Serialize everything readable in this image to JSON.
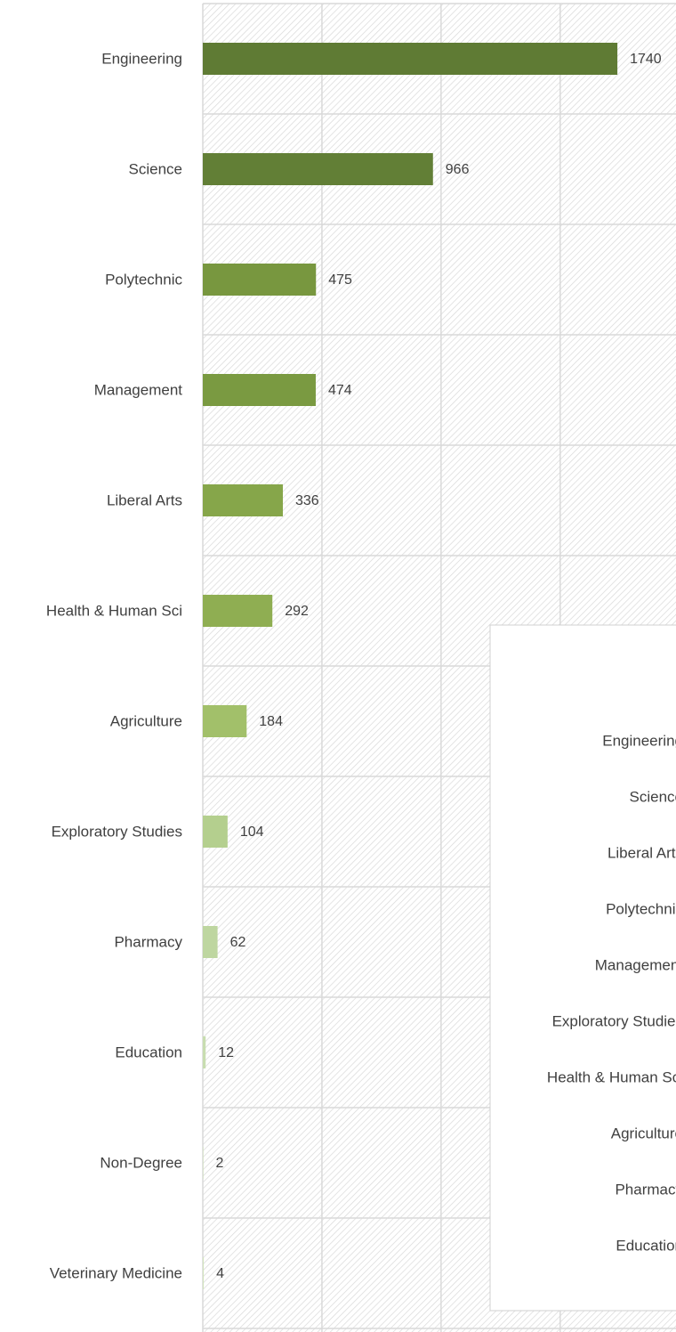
{
  "chart_data": {
    "type": "hbar",
    "categories": [
      "Engineering",
      "Science",
      "Polytechnic",
      "Management",
      "Liberal Arts",
      "Health & Human Sci",
      "Agriculture",
      "Exploratory Studies",
      "Pharmacy",
      "Education",
      "Non-Degree",
      "Veterinary Medicine"
    ],
    "values": [
      1740,
      966,
      475,
      474,
      336,
      292,
      184,
      104,
      62,
      12,
      2,
      4
    ],
    "colors": [
      "#5f7b34",
      "#627f36",
      "#78973f",
      "#7a9a41",
      "#86a64a",
      "#8fae52",
      "#a2c06a",
      "#b4cf8e",
      "#bed6a0",
      "#c8ddb0",
      "#cfe2ba",
      "#d3e4bf"
    ],
    "xlim": [
      0,
      1986
    ],
    "xticks": [
      0,
      500,
      1000,
      1500
    ],
    "grid": true
  },
  "inset_chart": {
    "categories": [
      "Engineering",
      "Science",
      "Liberal Arts",
      "Polytechnic",
      "Management",
      "Exploratory Studies",
      "Health & Human Sci",
      "Agriculture",
      "Pharmacy",
      "Education"
    ]
  }
}
